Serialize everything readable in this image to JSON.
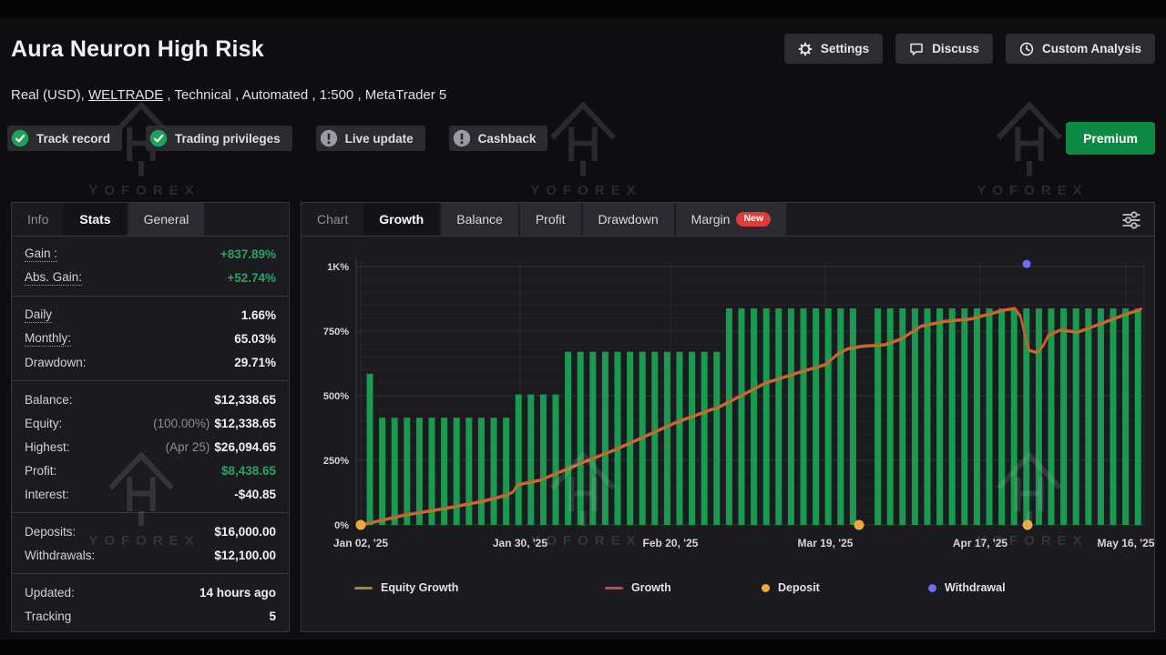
{
  "header": {
    "title": "Aura Neuron High Risk",
    "buttons": [
      {
        "label": "Settings",
        "icon": "gear-icon"
      },
      {
        "label": "Discuss",
        "icon": "chat-icon"
      },
      {
        "label": "Custom Analysis",
        "icon": "clock-icon"
      }
    ]
  },
  "subtitle": {
    "prefix": "Real (USD), ",
    "broker_link": "WELTRADE",
    "suffix": " , Technical , Automated , 1:500 , MetaTrader 5"
  },
  "badges": [
    {
      "label": "Track record",
      "icon": "check"
    },
    {
      "label": "Trading privileges",
      "icon": "check"
    },
    {
      "label": "Live update",
      "icon": "exclamation"
    },
    {
      "label": "Cashback",
      "icon": "exclamation"
    }
  ],
  "premium_label": "Premium",
  "watermark_text": "YOFOREX",
  "stats_panel": {
    "tabs": [
      {
        "label": "Info",
        "state": "plain"
      },
      {
        "label": "Stats",
        "state": "active"
      },
      {
        "label": "General",
        "state": "raised"
      }
    ],
    "groups": [
      [
        {
          "label": "Gain :",
          "dotted": true,
          "value": "+837.89%",
          "green": true
        },
        {
          "label": "Abs. Gain:",
          "dotted": true,
          "value": "+52.74%",
          "green": true
        }
      ],
      [
        {
          "label": "Daily",
          "dotted": true,
          "value": "1.66%"
        },
        {
          "label": "Monthly:",
          "dotted": true,
          "value": "65.03%"
        },
        {
          "label": "Drawdown:",
          "value": "29.71%"
        }
      ],
      [
        {
          "label": "Balance:",
          "value": "$12,338.65"
        },
        {
          "label": "Equity:",
          "note": "(100.00%)",
          "value": "$12,338.65"
        },
        {
          "label": "Highest:",
          "note": "(Apr 25)",
          "value": "$26,094.65"
        },
        {
          "label": "Profit:",
          "value": "$8,438.65",
          "green": true
        },
        {
          "label": "Interest:",
          "value": "-$40.85"
        }
      ],
      [
        {
          "label": "Deposits:",
          "value": "$16,000.00"
        },
        {
          "label": "Withdrawals:",
          "value": "$12,100.00"
        }
      ],
      [
        {
          "label": "Updated:",
          "value": "14 hours ago"
        },
        {
          "label": "Tracking",
          "value": "5"
        }
      ]
    ]
  },
  "chart_panel": {
    "tabs": [
      {
        "label": "Chart",
        "state": "plain"
      },
      {
        "label": "Growth",
        "state": "active"
      },
      {
        "label": "Balance",
        "state": "raised"
      },
      {
        "label": "Profit",
        "state": "raised"
      },
      {
        "label": "Drawdown",
        "state": "raised"
      },
      {
        "label": "Margin",
        "state": "raised",
        "badge": "New"
      }
    ]
  },
  "chart_data": {
    "type": "bar",
    "title": "Growth",
    "ylim": [
      0,
      1000
    ],
    "grid": true,
    "legend_position": "bottom",
    "y_ticks": [
      {
        "v": 0,
        "label": "0%"
      },
      {
        "v": 250,
        "label": "250%"
      },
      {
        "v": 500,
        "label": "500%"
      },
      {
        "v": 750,
        "label": "750%"
      },
      {
        "v": 1000,
        "label": "1K%"
      }
    ],
    "x_ticks": [
      {
        "x": 65,
        "label": "Jan 02, '25"
      },
      {
        "x": 240,
        "label": "Jan 30, '25"
      },
      {
        "x": 405,
        "label": "Feb 20, '25"
      },
      {
        "x": 575,
        "label": "Mar 19, '25"
      },
      {
        "x": 745,
        "label": "Apr 17, '25"
      },
      {
        "x": 905,
        "label": "May 16, '25"
      }
    ],
    "bars": {
      "name": "Equity Growth bars",
      "color": "#189a50",
      "unit": "%",
      "values_pct": [
        585,
        415,
        415,
        415,
        415,
        415,
        415,
        415,
        415,
        415,
        415,
        415,
        505,
        505,
        505,
        505,
        670,
        670,
        670,
        670,
        670,
        670,
        670,
        670,
        670,
        670,
        670,
        670,
        670,
        838,
        838,
        838,
        838,
        838,
        838,
        838,
        838,
        838,
        838,
        838,
        null,
        838,
        838,
        838,
        838,
        838,
        838,
        838,
        838,
        838,
        838,
        838,
        838,
        838,
        838,
        838,
        838,
        838,
        838,
        838,
        838,
        838,
        838
      ]
    },
    "growth_line": {
      "name": "Growth",
      "color": "#e1503a",
      "points_pct": [
        [
          65,
          2
        ],
        [
          112,
          40
        ],
        [
          160,
          68
        ],
        [
          200,
          95
        ],
        [
          225,
          118
        ],
        [
          232,
          130
        ],
        [
          237,
          158
        ],
        [
          262,
          176
        ],
        [
          310,
          246
        ],
        [
          343,
          292
        ],
        [
          380,
          350
        ],
        [
          410,
          398
        ],
        [
          460,
          462
        ],
        [
          510,
          553
        ],
        [
          545,
          592
        ],
        [
          575,
          623
        ],
        [
          590,
          668
        ],
        [
          600,
          685
        ],
        [
          615,
          694
        ],
        [
          640,
          700
        ],
        [
          658,
          722
        ],
        [
          680,
          772
        ],
        [
          705,
          790
        ],
        [
          735,
          800
        ],
        [
          770,
          833
        ],
        [
          783,
          841
        ],
        [
          789,
          812
        ],
        [
          794,
          740
        ],
        [
          799,
          678
        ],
        [
          807,
          670
        ],
        [
          814,
          695
        ],
        [
          820,
          737
        ],
        [
          833,
          757
        ],
        [
          842,
          753
        ],
        [
          852,
          749
        ],
        [
          863,
          763
        ],
        [
          880,
          785
        ],
        [
          900,
          812
        ],
        [
          922,
          838
        ]
      ]
    },
    "equity_line": {
      "name": "Equity Growth",
      "color": "#9f8d1c"
    },
    "deposits": {
      "name": "Deposit",
      "color": "#f2a93b",
      "x_positions": [
        65,
        612,
        797
      ],
      "value_pct": 0
    },
    "withdrawals": {
      "name": "Withdrawal",
      "color": "#6e6ef2",
      "points": [
        [
          796,
          1010
        ]
      ]
    },
    "legend": [
      {
        "label": "Equity Growth",
        "type": "line",
        "color": "#9f8d1c",
        "x": 58
      },
      {
        "label": "Growth",
        "type": "line",
        "color": "#bf4a46",
        "x": 333
      },
      {
        "label": "Deposit",
        "type": "dot",
        "color": "#f2a93b",
        "x": 505
      },
      {
        "label": "Withdrawal",
        "type": "dot",
        "color": "#6e6ef2",
        "x": 688
      }
    ]
  }
}
